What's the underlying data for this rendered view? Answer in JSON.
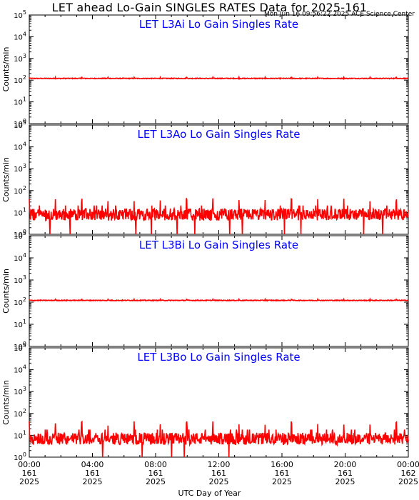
{
  "title": "LET ahead Lo-Gain SINGLES RATES Data for 2025-161",
  "timestamp": "Mon Jun 16 09:56:22 2025 ACE Science Center",
  "xlabel": "UTC Day of Year",
  "colors": {
    "series": "#ff0000",
    "panel_title": "#0000ff",
    "axes": "#000000"
  },
  "chart_data": [
    {
      "type": "line",
      "title": "LET L3Ai Lo Gain Singles Rate",
      "ylabel": "Counts/min",
      "yscale": "log",
      "ylim": [
        1,
        100000
      ],
      "y_ticks": [
        "10^0",
        "10^1",
        "10^2",
        "10^3",
        "10^4",
        "10^5"
      ],
      "x_range_hours": [
        0,
        24
      ],
      "series": [
        {
          "baseline": 120,
          "spike": 135,
          "min": 105,
          "noise": "low"
        }
      ]
    },
    {
      "type": "line",
      "title": "LET L3Ao Lo Gain Singles Rate",
      "ylabel": "Counts/min",
      "yscale": "log",
      "ylim": [
        1,
        100000
      ],
      "y_ticks": [
        "10^0",
        "10^1",
        "10^2",
        "10^3",
        "10^4",
        "10^5"
      ],
      "x_range_hours": [
        0,
        24
      ],
      "series": [
        {
          "baseline": 8,
          "spike": 45,
          "min": 1,
          "noise": "high"
        }
      ]
    },
    {
      "type": "line",
      "title": "LET L3Bi Lo Gain Singles Rate",
      "ylabel": "Counts/min",
      "yscale": "log",
      "ylim": [
        1,
        100000
      ],
      "y_ticks": [
        "10^0",
        "10^1",
        "10^2",
        "10^3",
        "10^4",
        "10^5"
      ],
      "x_range_hours": [
        0,
        24
      ],
      "series": [
        {
          "baseline": 120,
          "spike": 135,
          "min": 105,
          "noise": "low"
        }
      ]
    },
    {
      "type": "line",
      "title": "LET L3Bo Lo Gain Singles Rate",
      "ylabel": "Counts/min",
      "yscale": "log",
      "ylim": [
        1,
        100000
      ],
      "y_ticks": [
        "10^0",
        "10^1",
        "10^2",
        "10^3",
        "10^4",
        "10^5"
      ],
      "x_range_hours": [
        0,
        24
      ],
      "series": [
        {
          "baseline": 7,
          "spike": 45,
          "min": 1,
          "noise": "high"
        }
      ]
    }
  ],
  "x_ticks": [
    {
      "hours": 0,
      "time": "00:00",
      "doy": "161",
      "year": "2025"
    },
    {
      "hours": 4,
      "time": "04:00",
      "doy": "161",
      "year": "2025"
    },
    {
      "hours": 8,
      "time": "08:00",
      "doy": "161",
      "year": "2025"
    },
    {
      "hours": 12,
      "time": "12:00",
      "doy": "161",
      "year": "2025"
    },
    {
      "hours": 16,
      "time": "16:00",
      "doy": "161",
      "year": "2025"
    },
    {
      "hours": 20,
      "time": "20:00",
      "doy": "161",
      "year": "2025"
    },
    {
      "hours": 24,
      "time": "00:00",
      "doy": "162",
      "year": "2025"
    }
  ],
  "spike_period_hours": 1.66
}
